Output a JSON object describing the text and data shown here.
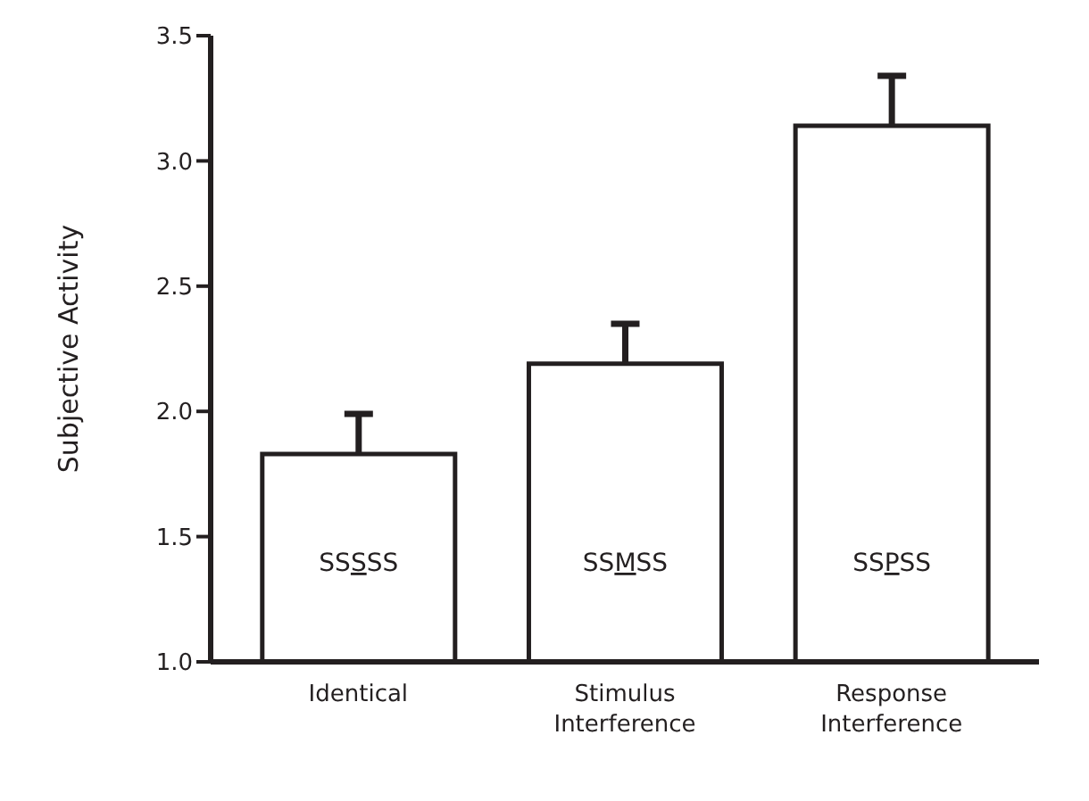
{
  "chart_data": {
    "type": "bar",
    "ylabel": "Subjective Activity",
    "categories": [
      "Identical",
      "Stimulus Interference",
      "Response Interference"
    ],
    "values": [
      1.83,
      2.19,
      3.14
    ],
    "errors": [
      [
        1.83,
        1.99
      ],
      [
        2.19,
        2.35
      ],
      [
        3.14,
        3.34
      ]
    ],
    "color": "#ffffff",
    "ylim": [
      1.0,
      3.5
    ],
    "yticks": [
      {
        "value": 1.0,
        "label": "1.0"
      },
      {
        "value": 1.5,
        "label": "1.5"
      },
      {
        "value": 2.0,
        "label": "2.0"
      },
      {
        "value": 2.5,
        "label": "2.5"
      },
      {
        "value": 3.0,
        "label": "3.0"
      },
      {
        "value": 3.5,
        "label": "3.5"
      }
    ],
    "annotations": [
      "SSSSS",
      "SSMSS",
      "SSPSS"
    ]
  }
}
